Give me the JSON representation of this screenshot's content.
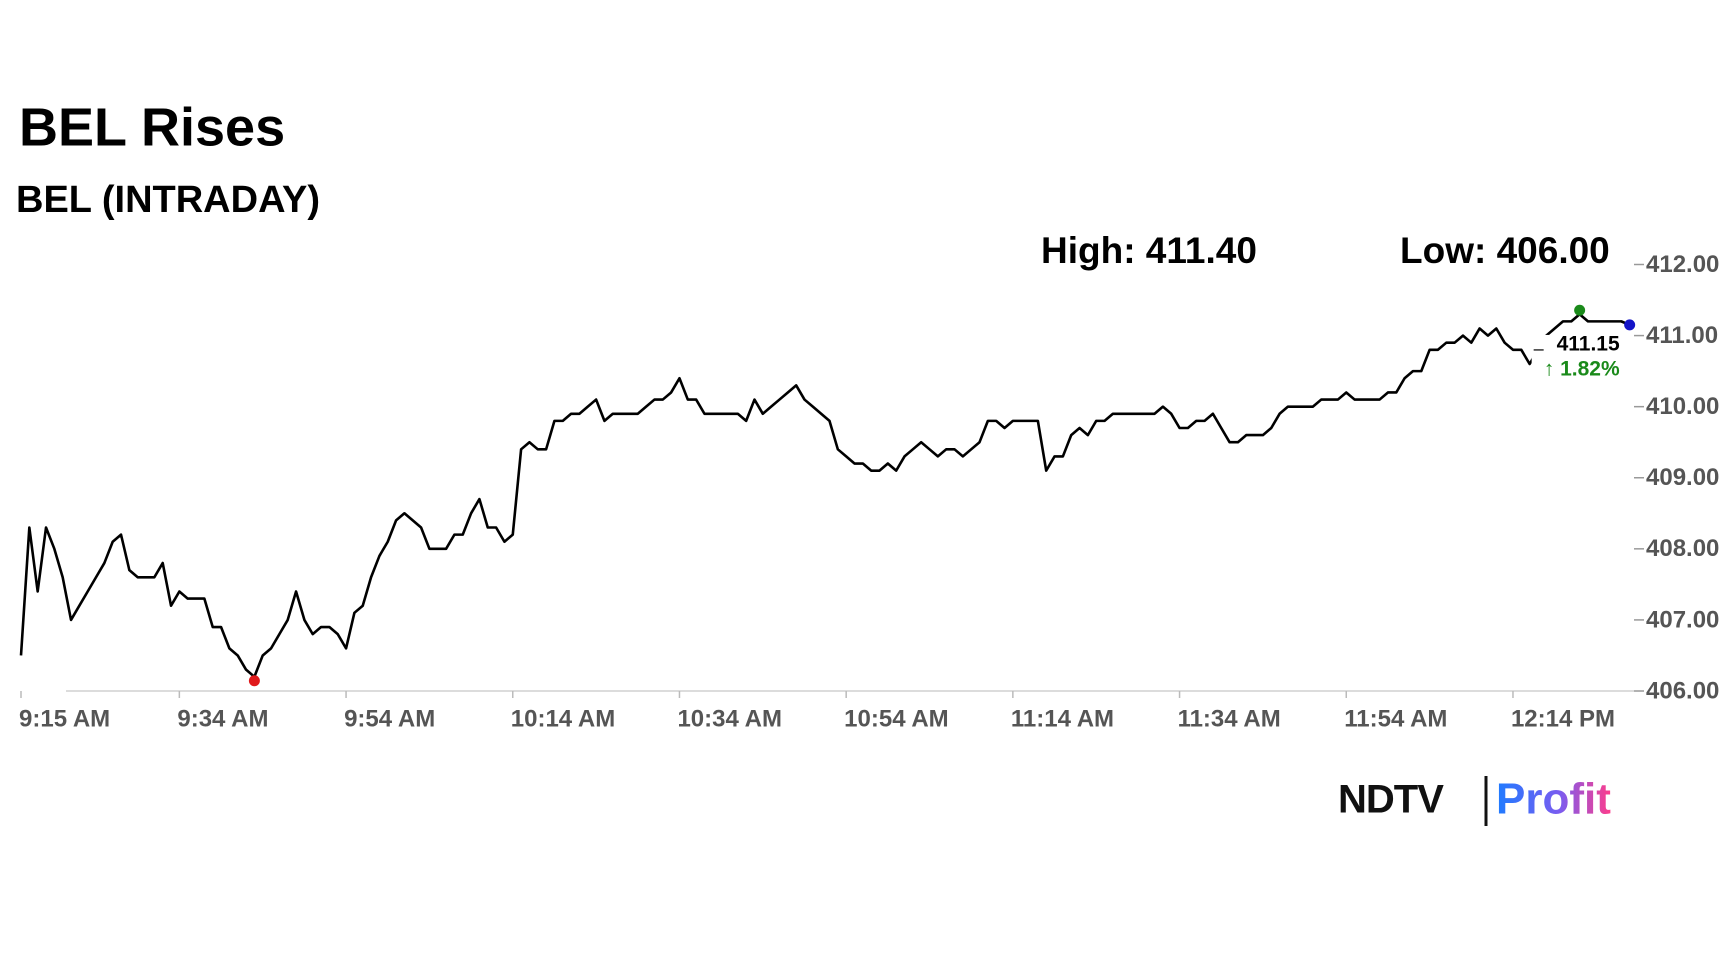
{
  "chart_data": {
    "type": "line",
    "title": "BEL Rises",
    "subtitle": "BEL (INTRADAY)",
    "high_label": "High: 411.40",
    "low_label": "Low: 406.00",
    "last_price_label": "411.15",
    "change_label": "↑ 1.82%",
    "change_color": "#1a8a1a",
    "low_marker_color": "#e0191b",
    "high_marker_color": "#1a8a1a",
    "last_marker_color": "#1414c8",
    "logo": [
      "NDTV",
      "Profit"
    ],
    "grid": false,
    "categories": [
      "9:15 AM",
      null,
      null,
      null,
      null,
      null,
      null,
      null,
      null,
      null,
      null,
      null,
      null,
      null,
      null,
      null,
      null,
      null,
      null,
      "9:34 AM",
      null,
      null,
      null,
      null,
      null,
      null,
      null,
      null,
      null,
      null,
      null,
      null,
      null,
      null,
      null,
      null,
      null,
      null,
      null,
      "9:54 AM",
      null,
      null,
      null,
      null,
      null,
      null,
      null,
      null,
      null,
      null,
      null,
      null,
      null,
      null,
      null,
      null,
      null,
      null,
      null,
      "10:14 AM",
      null,
      null,
      null,
      null,
      null,
      null,
      null,
      null,
      null,
      null,
      null,
      null,
      null,
      null,
      null,
      null,
      null,
      null,
      null,
      "10:34 AM",
      null,
      null,
      null,
      null,
      null,
      null,
      null,
      null,
      null,
      null,
      null,
      null,
      null,
      null,
      null,
      null,
      null,
      null,
      null,
      "10:54 AM",
      null,
      null,
      null,
      null,
      null,
      null,
      null,
      null,
      null,
      null,
      null,
      null,
      null,
      null,
      null,
      null,
      null,
      null,
      null,
      "11:14 AM",
      null,
      null,
      null,
      null,
      null,
      null,
      null,
      null,
      null,
      null,
      null,
      null,
      null,
      null,
      null,
      null,
      null,
      null,
      null,
      "11:34 AM",
      null,
      null,
      null,
      null,
      null,
      null,
      null,
      null,
      null,
      null,
      null,
      null,
      null,
      null,
      null,
      null,
      null,
      null,
      null,
      "11:54 AM",
      null,
      null,
      null,
      null,
      null,
      null,
      null,
      null,
      null,
      null,
      null,
      null,
      null,
      null,
      null,
      null,
      null,
      null,
      null,
      "12:14 PM",
      null,
      null,
      null,
      null,
      null,
      null,
      null,
      null,
      null,
      null,
      null,
      null,
      null,
      null
    ],
    "series": [
      {
        "name": "BEL",
        "color": "#000000",
        "values": [
          406.5,
          408.3,
          407.4,
          408.3,
          408.0,
          407.6,
          407.0,
          407.2,
          407.4,
          407.6,
          407.8,
          408.1,
          408.2,
          407.7,
          407.6,
          407.6,
          407.6,
          407.8,
          407.2,
          407.4,
          407.3,
          407.3,
          407.3,
          406.9,
          406.9,
          406.6,
          406.5,
          406.3,
          406.2,
          406.5,
          406.6,
          406.8,
          407.0,
          407.4,
          407.0,
          406.8,
          406.9,
          406.9,
          406.8,
          406.6,
          407.1,
          407.2,
          407.6,
          407.9,
          408.1,
          408.4,
          408.5,
          408.4,
          408.3,
          408.0,
          408.0,
          408.0,
          408.2,
          408.2,
          408.5,
          408.7,
          408.3,
          408.3,
          408.1,
          408.2,
          409.4,
          409.5,
          409.4,
          409.4,
          409.8,
          409.8,
          409.9,
          409.9,
          410.0,
          410.1,
          409.8,
          409.9,
          409.9,
          409.9,
          409.9,
          410.0,
          410.1,
          410.1,
          410.2,
          410.4,
          410.1,
          410.1,
          409.9,
          409.9,
          409.9,
          409.9,
          409.9,
          409.8,
          410.1,
          409.9,
          410.0,
          410.1,
          410.2,
          410.3,
          410.1,
          410.0,
          409.9,
          409.8,
          409.4,
          409.3,
          409.2,
          409.2,
          409.1,
          409.1,
          409.2,
          409.1,
          409.3,
          409.4,
          409.5,
          409.4,
          409.3,
          409.4,
          409.4,
          409.3,
          409.4,
          409.5,
          409.8,
          409.8,
          409.7,
          409.8,
          409.8,
          409.8,
          409.8,
          409.1,
          409.3,
          409.3,
          409.6,
          409.7,
          409.6,
          409.8,
          409.8,
          409.9,
          409.9,
          409.9,
          409.9,
          409.9,
          409.9,
          410.0,
          409.9,
          409.7,
          409.7,
          409.8,
          409.8,
          409.9,
          409.7,
          409.5,
          409.5,
          409.6,
          409.6,
          409.6,
          409.7,
          409.9,
          410.0,
          410.0,
          410.0,
          410.0,
          410.1,
          410.1,
          410.1,
          410.2,
          410.1,
          410.1,
          410.1,
          410.1,
          410.2,
          410.2,
          410.4,
          410.5,
          410.5,
          410.8,
          410.8,
          410.9,
          410.9,
          411.0,
          410.9,
          411.1,
          411.0,
          411.1,
          410.9,
          410.8,
          410.8,
          410.6,
          410.8,
          411.0,
          411.1,
          411.2,
          411.2,
          411.3,
          411.2,
          411.2,
          411.2,
          411.2,
          411.2,
          411.15
        ]
      }
    ],
    "ylim": [
      406,
      412
    ],
    "yticks": [
      {
        "value": 406,
        "label": "406.00"
      },
      {
        "value": 407,
        "label": "407.00"
      },
      {
        "value": 408,
        "label": "408.00"
      },
      {
        "value": 409,
        "label": "409.00"
      },
      {
        "value": 410,
        "label": "410.00"
      },
      {
        "value": 411,
        "label": "411.00"
      },
      {
        "value": 412,
        "label": "412.00"
      }
    ]
  }
}
